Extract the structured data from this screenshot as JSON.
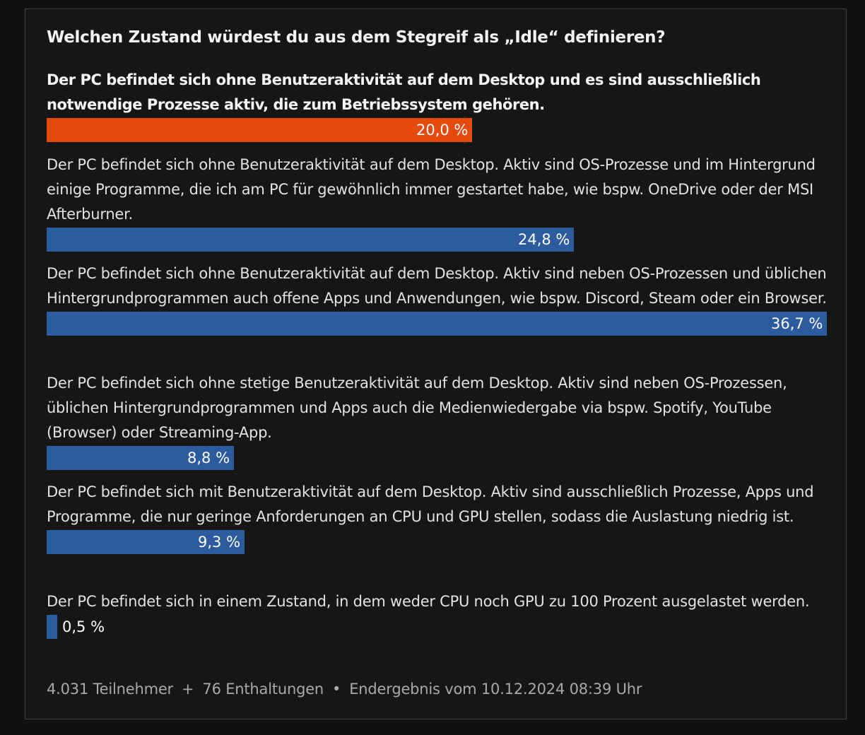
{
  "poll": {
    "title": "Welchen Zustand würdest du aus dem Stegreif als „Idle“ definieren?",
    "footer": {
      "participants": "4.031 Teilnehmer",
      "separator_plus": "+",
      "abstentions": "76 Enthaltungen",
      "separator_dot": "•",
      "result": "Endergebnis vom 10.12.2024 08:39 Uhr"
    }
  },
  "colors": {
    "winner_bar": "#e54b0d",
    "bar": "#2c5b9e",
    "background": "#161616",
    "border": "#3f3f3f"
  },
  "chart_data": {
    "type": "bar",
    "orientation": "horizontal",
    "title": "Welchen Zustand würdest du aus dem Stegreif als „Idle“ definieren?",
    "unit": "%",
    "xlim": [
      0,
      36.7
    ],
    "categories": [
      "Der PC befindet sich ohne Benutzeraktivität auf dem Desktop und es sind ausschließlich notwendige Prozesse aktiv, die zum Betriebssystem gehören.",
      "Der PC befindet sich ohne Benutzeraktivität auf dem Desktop. Aktiv sind OS-Prozesse und im Hintergrund einige Programme, die ich am PC für gewöhnlich immer gestartet habe, wie bspw. OneDrive oder der MSI Afterburner.",
      "Der PC befindet sich ohne Benutzeraktivität auf dem Desktop. Aktiv sind neben OS-Prozessen und üblichen Hintergrundprogrammen auch offene Apps und Anwendungen, wie bspw. Discord, Steam oder ein Browser.",
      "Der PC befindet sich ohne stetige Benutzeraktivität auf dem Desktop. Aktiv sind neben OS-Prozessen, üblichen Hintergrundprogrammen und Apps auch die Medienwiedergabe via bspw. Spotify, YouTube (Browser) oder Streaming-App.",
      "Der PC befindet sich mit Benutzeraktivität auf dem Desktop. Aktiv sind ausschließlich Prozesse, Apps und Programme, die nur geringe Anforderungen an CPU und GPU stellen, sodass die Auslastung niedrig ist.",
      "Der PC befindet sich in einem Zustand, in dem weder CPU noch GPU zu 100 Prozent ausgelastet werden."
    ],
    "values": [
      20.0,
      24.8,
      36.7,
      8.8,
      9.3,
      0.5
    ],
    "value_labels": [
      "20,0 %",
      "24,8 %",
      "36,7 %",
      "8,8 %",
      "9,3 %",
      "0,5 %"
    ],
    "highlighted": [
      true,
      false,
      false,
      false,
      false,
      false
    ]
  }
}
